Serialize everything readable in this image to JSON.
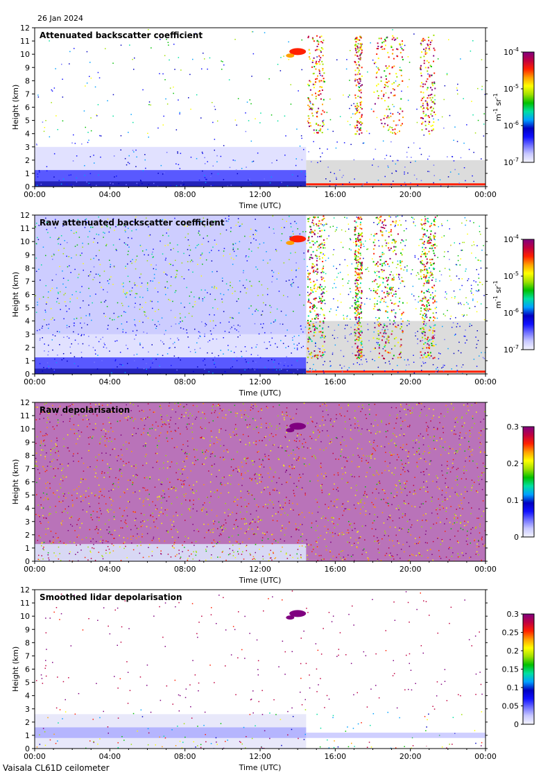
{
  "header": {
    "date": "26 Jan 2024"
  },
  "footer": {
    "instrument": "Vaisala CL61D ceilometer"
  },
  "colors": {
    "scale": [
      "#f4f4ff",
      "#c8c8ff",
      "#7070ff",
      "#1010ff",
      "#0000c0",
      "#00a0ff",
      "#00e0a0",
      "#00c000",
      "#a0e000",
      "#ffff00",
      "#ffa000",
      "#ff2000",
      "#c00040",
      "#800080"
    ],
    "no_signal": "#dcdcdc"
  },
  "chart_data": [
    {
      "type": "heatmap",
      "title": "Attenuated backscatter coefficient",
      "xlabel": "Time (UTC)",
      "ylabel": "Height (km)",
      "xticks": [
        "00:00",
        "04:00",
        "08:00",
        "12:00",
        "16:00",
        "20:00",
        "00:00"
      ],
      "yticks": [
        "0",
        "1",
        "2",
        "3",
        "4",
        "5",
        "6",
        "7",
        "8",
        "9",
        "10",
        "11",
        "12"
      ],
      "ylim": [
        0,
        12
      ],
      "xlim_hours": [
        0,
        24
      ],
      "colorbar": {
        "scale": "log",
        "ticks": [
          "10^-7",
          "10^-6",
          "10^-5",
          "10^-4"
        ],
        "unit": "m^-1 sr^-1"
      },
      "features": [
        "Boundary layer aerosol below ~1.2 km, 00:00-14:30",
        "Noise-dominated signal up to ~4 km before 14:30",
        "Cloud layer at ~10-10.5 km near 13:30-14:30",
        "Precipitation/cloud columns after 14:30 (14:30-15:30, 17:00-17:30, 18:00-19:40, 20:30-21:20)"
      ]
    },
    {
      "type": "heatmap",
      "title": "Raw attenuated backscatter coefficient",
      "xlabel": "Time (UTC)",
      "ylabel": "Height (km)",
      "xticks": [
        "00:00",
        "04:00",
        "08:00",
        "12:00",
        "16:00",
        "20:00",
        "00:00"
      ],
      "yticks": [
        "0",
        "1",
        "2",
        "3",
        "4",
        "5",
        "6",
        "7",
        "8",
        "9",
        "10",
        "11",
        "12"
      ],
      "ylim": [
        0,
        12
      ],
      "xlim_hours": [
        0,
        24
      ],
      "colorbar": {
        "scale": "log",
        "ticks": [
          "10^-7",
          "10^-6",
          "10^-5",
          "10^-4"
        ],
        "unit": "m^-1 sr^-1"
      }
    },
    {
      "type": "heatmap",
      "title": "Raw depolarisation",
      "xlabel": "Time (UTC)",
      "ylabel": "Height (km)",
      "xticks": [
        "00:00",
        "04:00",
        "08:00",
        "12:00",
        "16:00",
        "20:00",
        "00:00"
      ],
      "yticks": [
        "0",
        "1",
        "2",
        "3",
        "4",
        "5",
        "6",
        "7",
        "8",
        "9",
        "10",
        "11",
        "12"
      ],
      "ylim": [
        0,
        12
      ],
      "xlim_hours": [
        0,
        24
      ],
      "colorbar": {
        "scale": "linear",
        "ticks": [
          "0",
          "0.1",
          "0.2",
          "0.3"
        ],
        "unit": ""
      }
    },
    {
      "type": "heatmap",
      "title": "Smoothed lidar depolarisation",
      "xlabel": "Time (UTC)",
      "ylabel": "Height (km)",
      "xticks": [
        "00:00",
        "04:00",
        "08:00",
        "12:00",
        "16:00",
        "20:00",
        "00:00"
      ],
      "yticks": [
        "0",
        "1",
        "2",
        "3",
        "4",
        "5",
        "6",
        "7",
        "8",
        "9",
        "10",
        "11",
        "12"
      ],
      "ylim": [
        0,
        12
      ],
      "xlim_hours": [
        0,
        24
      ],
      "colorbar": {
        "scale": "linear",
        "ticks": [
          "0",
          "0.05",
          "0.1",
          "0.15",
          "0.2",
          "0.25",
          "0.3"
        ],
        "unit": ""
      }
    }
  ]
}
